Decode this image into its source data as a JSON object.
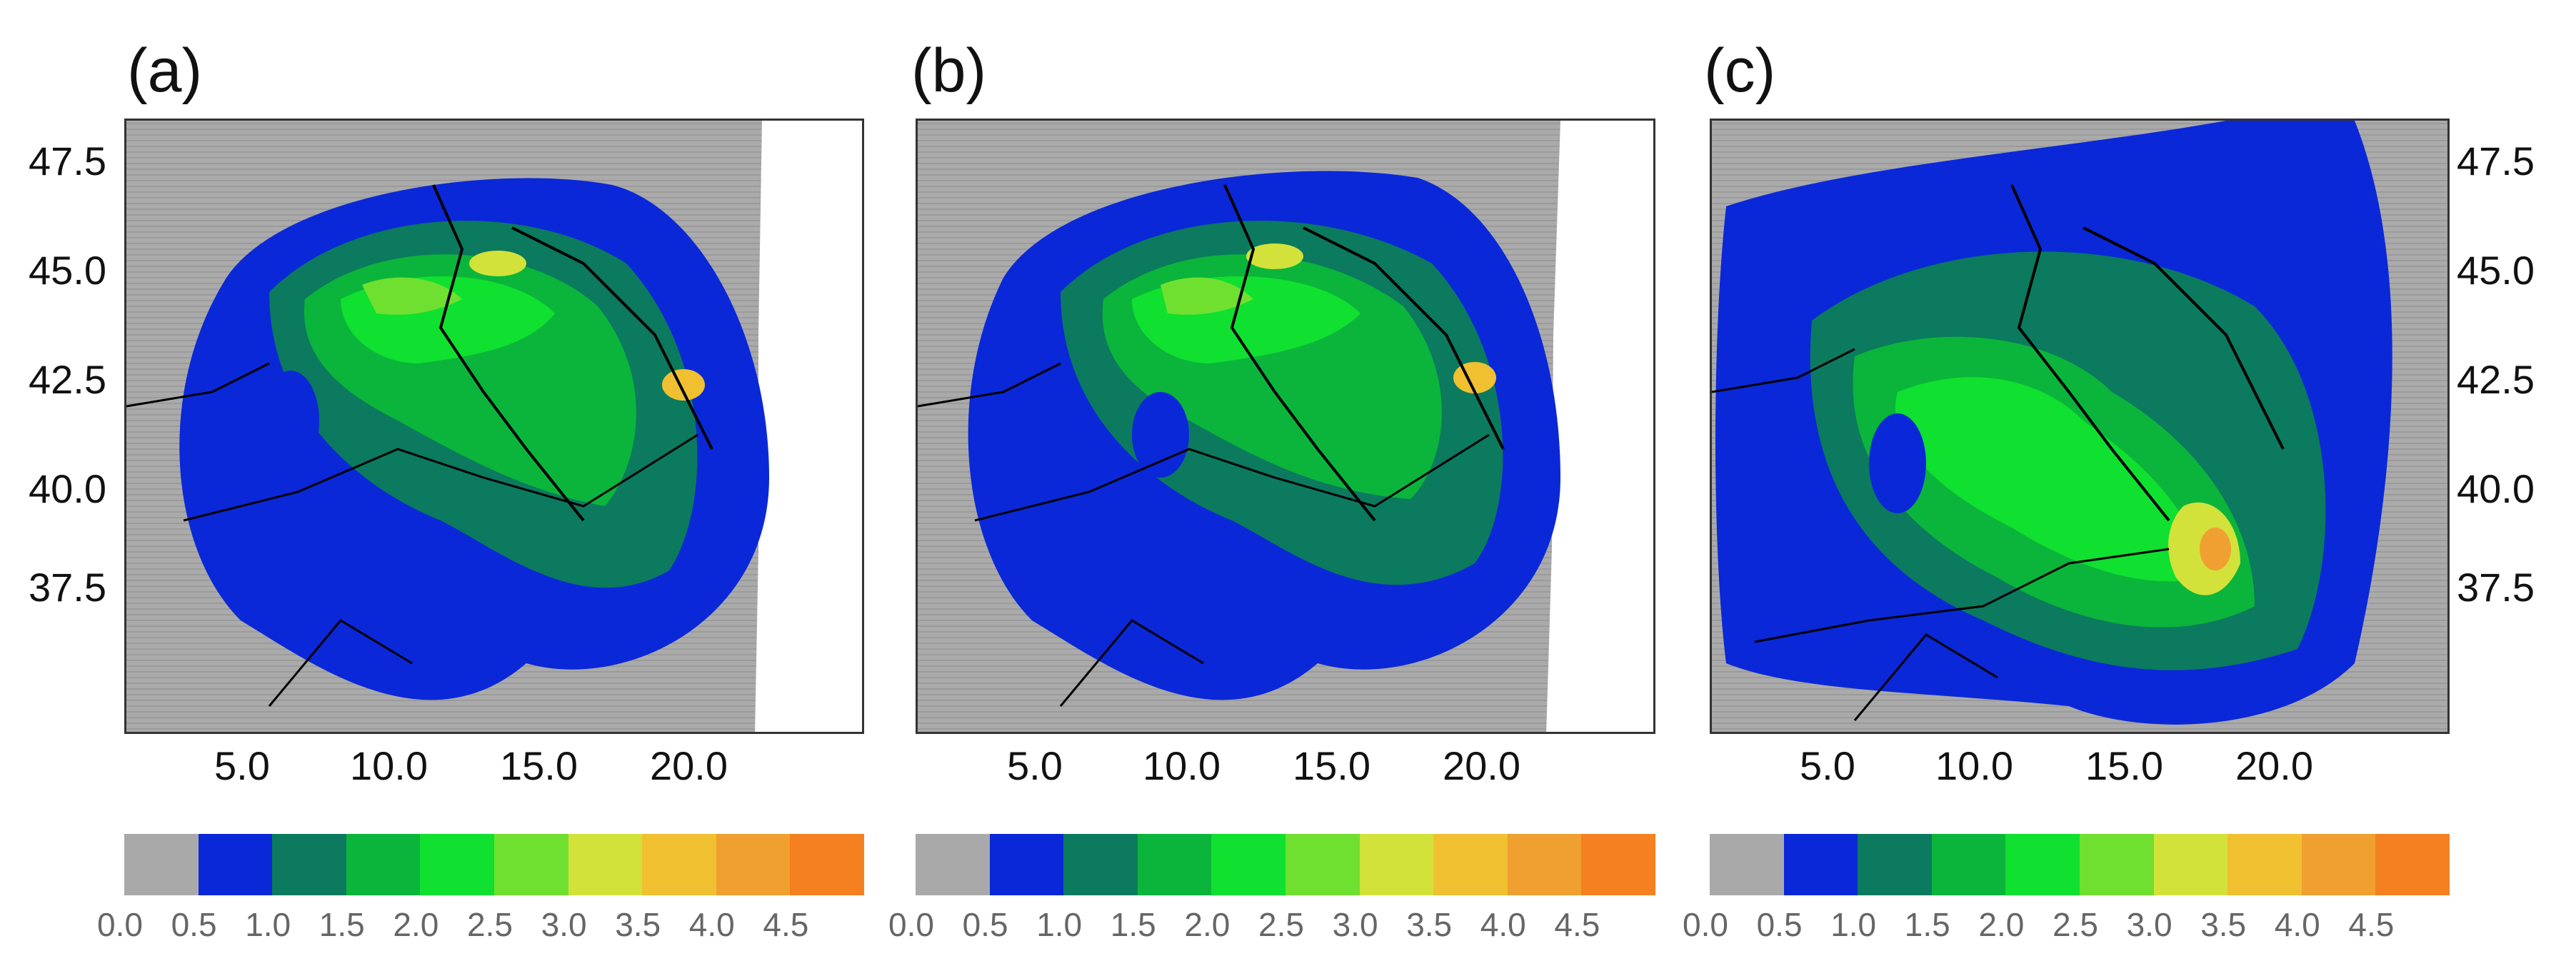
{
  "panels": [
    {
      "label": "(a)"
    },
    {
      "label": "(b)"
    },
    {
      "label": "(c)"
    }
  ],
  "lat_ticks": [
    "47.5",
    "45.0",
    "42.5",
    "40.0",
    "37.5"
  ],
  "lon_ticks": [
    "5.0",
    "10.0",
    "15.0",
    "20.0"
  ],
  "colorbar": {
    "colors": [
      "#a9a9a9",
      "#0a28d8",
      "#0b7a5e",
      "#0bb53b",
      "#10e030",
      "#6fe030",
      "#d2e23a",
      "#f0c030",
      "#f0a030",
      "#f58020"
    ],
    "labels": [
      "0.0",
      "0.5",
      "1.0",
      "1.5",
      "2.0",
      "2.5",
      "3.0",
      "3.5",
      "4.0",
      "4.5"
    ]
  }
}
